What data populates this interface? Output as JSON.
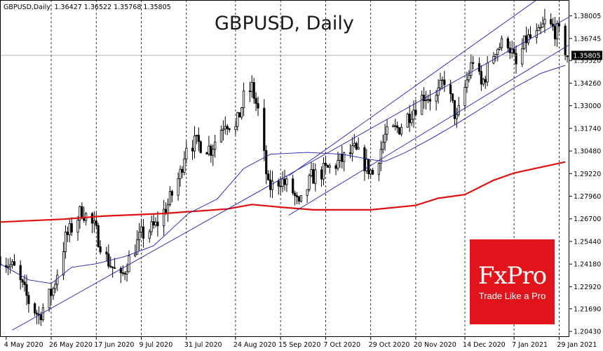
{
  "chart_info": {
    "symbol_line": "GBPUSD,Daily: 1.36427 1.36522 1.35768 1.35805",
    "title": "GBPUSD, Daily",
    "current_price_label": "1.35805"
  },
  "logo": {
    "brand": "FxPro",
    "tagline": "Trade Like a Pro",
    "background_color": "#e1141b"
  },
  "colors": {
    "ma_slow": "#e01010",
    "ma_fast": "#1e1eb4",
    "channel": "#1e1eb4",
    "candle": "#000000"
  },
  "chart_data": {
    "type": "line",
    "title": "GBPUSD, Daily",
    "xlabel": "",
    "ylabel": "",
    "ylim": [
      1.2012,
      1.3889
    ],
    "xlim": [
      "2020-05-01",
      "2021-02-03"
    ],
    "y_ticks": [
      "1.38005",
      "1.36745",
      "1.35520",
      "1.34260",
      "1.33000",
      "1.31740",
      "1.30480",
      "1.29220",
      "1.27960",
      "1.26700",
      "1.25440",
      "1.24180",
      "1.22920",
      "1.21690",
      "1.20430"
    ],
    "x_ticks": [
      {
        "date": "2020-05-04",
        "label": "4 May 2020"
      },
      {
        "date": "2020-05-26",
        "label": "26 May 2020"
      },
      {
        "date": "2020-06-17",
        "label": "17 Jun 2020"
      },
      {
        "date": "2020-07-09",
        "label": "9 Jul 2020"
      },
      {
        "date": "2020-07-31",
        "label": "31 Jul 2020"
      },
      {
        "date": "2020-08-24",
        "label": "24 Aug 2020"
      },
      {
        "date": "2020-09-15",
        "label": "15 Sep 2020"
      },
      {
        "date": "2020-10-07",
        "label": "7 Oct 2020"
      },
      {
        "date": "2020-10-29",
        "label": "29 Oct 2020"
      },
      {
        "date": "2020-11-20",
        "label": "20 Nov 2020"
      },
      {
        "date": "2020-12-14",
        "label": "14 Dec 2020"
      },
      {
        "date": "2021-01-07",
        "label": "7 Jan 2021"
      },
      {
        "date": "2021-01-29",
        "label": "29 Jan 2021"
      }
    ],
    "vgrid_dates": [
      "2020-05-26",
      "2020-06-17",
      "2020-07-09",
      "2020-07-31",
      "2020-08-24",
      "2020-09-15",
      "2020-10-07",
      "2020-10-29",
      "2020-11-20",
      "2020-12-14",
      "2021-01-07",
      "2021-01-29"
    ],
    "current_price": 1.35805,
    "close_path": [
      [
        "2020-05-01",
        1.246
      ],
      [
        "2020-05-08",
        1.239
      ],
      [
        "2020-05-15",
        1.221
      ],
      [
        "2020-05-20",
        1.213
      ],
      [
        "2020-05-27",
        1.228
      ],
      [
        "2020-06-02",
        1.256
      ],
      [
        "2020-06-10",
        1.272
      ],
      [
        "2020-06-16",
        1.262
      ],
      [
        "2020-06-22",
        1.245
      ],
      [
        "2020-06-29",
        1.233
      ],
      [
        "2020-07-02",
        1.242
      ],
      [
        "2020-07-09",
        1.258
      ],
      [
        "2020-07-16",
        1.263
      ],
      [
        "2020-07-22",
        1.275
      ],
      [
        "2020-07-28",
        1.292
      ],
      [
        "2020-07-31",
        1.309
      ],
      [
        "2020-08-06",
        1.309
      ],
      [
        "2020-08-12",
        1.306
      ],
      [
        "2020-08-19",
        1.322
      ],
      [
        "2020-08-24",
        1.317
      ],
      [
        "2020-08-28",
        1.334
      ],
      [
        "2020-09-01",
        1.34
      ],
      [
        "2020-09-04",
        1.327
      ],
      [
        "2020-09-09",
        1.284
      ],
      [
        "2020-09-15",
        1.289
      ],
      [
        "2020-09-21",
        1.282
      ],
      [
        "2020-09-24",
        1.273
      ],
      [
        "2020-09-30",
        1.29
      ],
      [
        "2020-10-07",
        1.294
      ],
      [
        "2020-10-14",
        1.299
      ],
      [
        "2020-10-21",
        1.305
      ],
      [
        "2020-10-26",
        1.298
      ],
      [
        "2020-10-30",
        1.292
      ],
      [
        "2020-11-05",
        1.313
      ],
      [
        "2020-11-12",
        1.318
      ],
      [
        "2020-11-18",
        1.327
      ],
      [
        "2020-11-24",
        1.336
      ],
      [
        "2020-11-30",
        1.334
      ],
      [
        "2020-12-04",
        1.345
      ],
      [
        "2020-12-10",
        1.322
      ],
      [
        "2020-12-15",
        1.344
      ],
      [
        "2020-12-18",
        1.356
      ],
      [
        "2020-12-22",
        1.341
      ],
      [
        "2020-12-29",
        1.362
      ],
      [
        "2021-01-04",
        1.366
      ],
      [
        "2021-01-08",
        1.352
      ],
      [
        "2021-01-13",
        1.367
      ],
      [
        "2021-01-19",
        1.369
      ],
      [
        "2021-01-22",
        1.376
      ],
      [
        "2021-01-26",
        1.373
      ],
      [
        "2021-01-29",
        1.37
      ],
      [
        "2021-02-02",
        1.358
      ]
    ],
    "series": [
      {
        "color_key": "ma_slow",
        "width": 2.2,
        "points": [
          [
            "2020-05-01",
            1.2652
          ],
          [
            "2020-06-01",
            1.2668
          ],
          [
            "2020-06-20",
            1.2685
          ],
          [
            "2020-07-20",
            1.27
          ],
          [
            "2020-08-20",
            1.2725
          ],
          [
            "2020-09-01",
            1.275
          ],
          [
            "2020-09-15",
            1.2735
          ],
          [
            "2020-10-01",
            1.272
          ],
          [
            "2020-10-29",
            1.272
          ],
          [
            "2020-11-20",
            1.2745
          ],
          [
            "2020-12-01",
            1.2785
          ],
          [
            "2020-12-14",
            1.2805
          ],
          [
            "2020-12-28",
            1.2885
          ],
          [
            "2021-01-07",
            1.2925
          ],
          [
            "2021-02-01",
            1.2987
          ]
        ]
      },
      {
        "color_key": "ma_fast",
        "width": 0.9,
        "points": [
          [
            "2020-05-01",
            1.242
          ],
          [
            "2020-05-15",
            1.233
          ],
          [
            "2020-05-26",
            1.231
          ],
          [
            "2020-06-05",
            1.24
          ],
          [
            "2020-06-17",
            1.242
          ],
          [
            "2020-07-01",
            1.246
          ],
          [
            "2020-07-15",
            1.252
          ],
          [
            "2020-08-01",
            1.27
          ],
          [
            "2020-08-15",
            1.278
          ],
          [
            "2020-08-28",
            1.295
          ],
          [
            "2020-09-10",
            1.303
          ],
          [
            "2020-09-28",
            1.304
          ],
          [
            "2020-10-15",
            1.303
          ],
          [
            "2020-10-29",
            1.3
          ],
          [
            "2020-11-05",
            1.299
          ],
          [
            "2020-11-15",
            1.304
          ],
          [
            "2020-11-28",
            1.312
          ],
          [
            "2020-12-10",
            1.32
          ],
          [
            "2020-12-20",
            1.327
          ],
          [
            "2021-01-07",
            1.34
          ],
          [
            "2021-01-20",
            1.348
          ],
          [
            "2021-02-01",
            1.3525
          ]
        ]
      }
    ],
    "channel_lines": [
      [
        [
          "2020-05-07",
          1.205
        ],
        [
          "2021-02-03",
          1.3795
        ]
      ],
      [
        [
          "2020-09-19",
          1.269
        ],
        [
          "2021-02-03",
          1.364
        ]
      ],
      [
        [
          "2020-09-19",
          1.291
        ],
        [
          "2021-01-18",
          1.3889
        ]
      ]
    ]
  }
}
